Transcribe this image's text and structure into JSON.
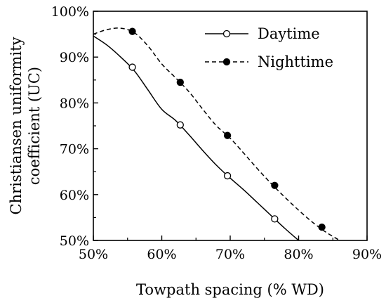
{
  "chart_data": {
    "type": "line",
    "xlabel": "Towpath spacing (% WD)",
    "ylabel_lines": [
      "Christiansen uniformity",
      "coefficient (UC)"
    ],
    "xlim": [
      50,
      90
    ],
    "ylim": [
      50,
      100
    ],
    "x_ticks": [
      "50%",
      "60%",
      "70%",
      "80%",
      "90%"
    ],
    "y_ticks": [
      "50%",
      "60%",
      "70%",
      "80%",
      "90%",
      "100%"
    ],
    "grid": false,
    "legend_position": "top-right",
    "series": [
      {
        "name": "Daytime",
        "line_style": "solid",
        "marker": "open-circle",
        "color": "#000000",
        "points": [
          [
            55.7,
            87.8
          ],
          [
            62.7,
            75.2
          ],
          [
            69.6,
            64.1
          ],
          [
            76.5,
            54.7
          ]
        ],
        "curve": [
          [
            50,
            94.6
          ],
          [
            52,
            92.6
          ],
          [
            54,
            90.0
          ],
          [
            56,
            87.0
          ],
          [
            58,
            82.8
          ],
          [
            60,
            78.6
          ],
          [
            62,
            76.2
          ],
          [
            64,
            73.0
          ],
          [
            66,
            69.6
          ],
          [
            68,
            66.4
          ],
          [
            70,
            63.6
          ],
          [
            72,
            61.0
          ],
          [
            74,
            58.2
          ],
          [
            76,
            55.4
          ],
          [
            78,
            52.6
          ],
          [
            80,
            50.0
          ]
        ]
      },
      {
        "name": "Nighttime",
        "line_style": "dashed",
        "marker": "filled-circle",
        "color": "#000000",
        "points": [
          [
            55.7,
            95.6
          ],
          [
            62.7,
            84.5
          ],
          [
            69.6,
            72.9
          ],
          [
            76.5,
            62.0
          ],
          [
            83.4,
            52.9
          ]
        ],
        "curve": [
          [
            50,
            95.0
          ],
          [
            52,
            96.0
          ],
          [
            54,
            96.3
          ],
          [
            56,
            95.3
          ],
          [
            58,
            92.4
          ],
          [
            60,
            88.5
          ],
          [
            62,
            85.5
          ],
          [
            64,
            82.4
          ],
          [
            66,
            78.6
          ],
          [
            68,
            75.0
          ],
          [
            70,
            72.3
          ],
          [
            72,
            69.0
          ],
          [
            74,
            65.6
          ],
          [
            76,
            62.4
          ],
          [
            78,
            59.4
          ],
          [
            80,
            56.6
          ],
          [
            82,
            54.0
          ],
          [
            84,
            51.8
          ],
          [
            86,
            50.0
          ]
        ]
      }
    ]
  }
}
